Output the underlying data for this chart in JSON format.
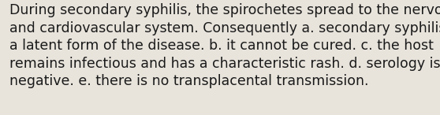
{
  "background_color": "#e8e4dc",
  "text_lines": [
    "During secondary syphilis, the spirochetes spread to the nervous",
    "and cardiovascular system. Consequently a. secondary syphilis is",
    "a latent form of the disease. b. it cannot be cured. c. the host",
    "remains infectious and has a characteristic rash. d. serology is",
    "negative. e. there is no transplacental transmission."
  ],
  "text_color": "#1a1a1a",
  "font_size": 12.5,
  "font_family": "DejaVu Sans",
  "fig_width": 5.58,
  "fig_height": 1.46,
  "dpi": 100
}
